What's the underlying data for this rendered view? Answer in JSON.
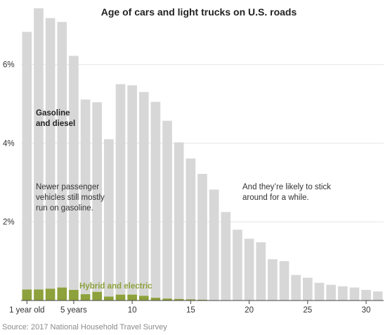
{
  "chart_data": {
    "type": "bar",
    "title": "Age of cars and light trucks on U.S. roads",
    "source": "Source: 2017 National Household Travel Survey",
    "x_ages": [
      1,
      2,
      3,
      4,
      5,
      6,
      7,
      8,
      9,
      10,
      11,
      12,
      13,
      14,
      15,
      16,
      17,
      18,
      19,
      20,
      21,
      22,
      23,
      24,
      25,
      26,
      27,
      28,
      29,
      30,
      31
    ],
    "x_tick_values": [
      1,
      5,
      10,
      15,
      20,
      25,
      30
    ],
    "x_tick_labels": [
      "1 year old",
      "5 years",
      "10",
      "15",
      "20",
      "25",
      "30"
    ],
    "y_ticks": [
      2,
      4,
      6
    ],
    "y_tick_labels": [
      "2%",
      "4%",
      "6%"
    ],
    "ylim": [
      0,
      7.5
    ],
    "series": [
      {
        "name": "Gasoline and diesel",
        "color": "#d7d7d7",
        "values": [
          6.55,
          7.15,
          6.88,
          6.75,
          5.95,
          4.95,
          4.82,
          4.0,
          5.35,
          5.32,
          5.18,
          4.98,
          4.52,
          3.98,
          3.58,
          3.2,
          2.82,
          2.25,
          1.8,
          1.57,
          1.48,
          1.05,
          1.0,
          0.65,
          0.58,
          0.45,
          0.4,
          0.36,
          0.33,
          0.27,
          0.23
        ]
      },
      {
        "name": "Hybrid and electric",
        "color": "#8da13c",
        "values": [
          0.28,
          0.28,
          0.3,
          0.33,
          0.27,
          0.16,
          0.22,
          0.1,
          0.15,
          0.15,
          0.12,
          0.07,
          0.05,
          0.04,
          0.03,
          0.02,
          0,
          0,
          0,
          0,
          0,
          0,
          0,
          0,
          0,
          0,
          0,
          0,
          0,
          0,
          0
        ]
      }
    ],
    "annotations": {
      "gas_label_line1": "Gasoline",
      "gas_label_line2": "and diesel",
      "newer_line1": "Newer passenger",
      "newer_line2": "vehicles still mostly",
      "newer_line3": "run on gasoline.",
      "stick_line1": "And they’re likely to stick",
      "stick_line2": "around for a while."
    }
  }
}
